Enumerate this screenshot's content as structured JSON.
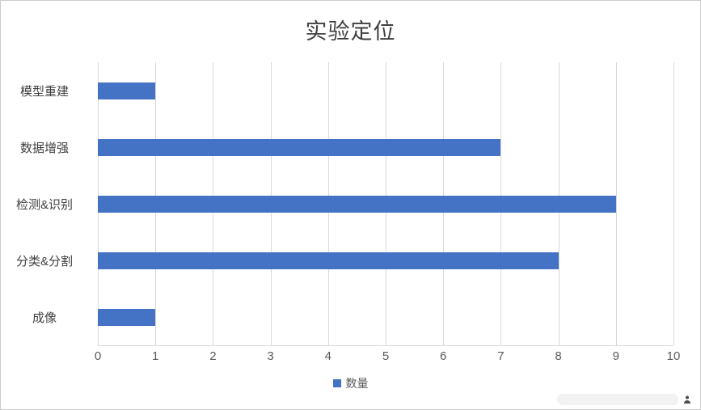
{
  "chart": {
    "legend_label": "数量",
    "colors": {
      "bar": "#4472c4",
      "grid": "#d9d9d9",
      "title_text": "#3f3f3f",
      "axis_text": "#595959"
    }
  },
  "chart_data": {
    "type": "bar",
    "orientation": "horizontal",
    "title": "实验定位",
    "categories": [
      "模型重建",
      "数据增强",
      "检测&识别",
      "分类&分割",
      "成像"
    ],
    "values": [
      1,
      7,
      9,
      8,
      1
    ],
    "xlabel": "",
    "ylabel": "",
    "xlim": [
      0,
      10
    ],
    "xticks": [
      0,
      1,
      2,
      3,
      4,
      5,
      6,
      7,
      8,
      9,
      10
    ],
    "grid": true,
    "legend": [
      "数量"
    ],
    "legend_position": "bottom"
  }
}
